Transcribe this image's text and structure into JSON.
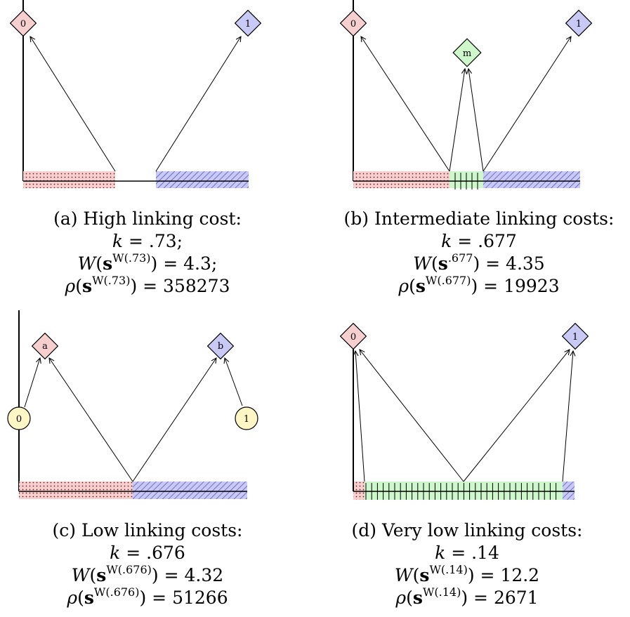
{
  "panels": [
    {
      "id": "a",
      "caption_title": "(a) High linking cost:",
      "k": ".73",
      "k_suffix": ";",
      "W_sup": "W(.73)",
      "W_val": "4.3",
      "W_suffix": ";",
      "rho_sup": "W(.73)",
      "rho_val": "358273",
      "nodes": [
        "0",
        "1"
      ],
      "segments": [
        "red-dotted",
        "gap",
        "blue-hatched"
      ]
    },
    {
      "id": "b",
      "caption_title": "(b) Intermediate linking costs:",
      "k": ".677",
      "k_suffix": "",
      "W_sup": ".677",
      "W_val": "4.35",
      "W_suffix": "",
      "rho_sup": "W(.677)",
      "rho_val": "19923",
      "nodes": [
        "0",
        "m",
        "1"
      ],
      "segments": [
        "red-dotted",
        "green-ticks",
        "blue-hatched"
      ]
    },
    {
      "id": "c",
      "caption_title": "(c) Low linking costs:",
      "k": ".676",
      "k_suffix": "",
      "W_sup": "W(.676)",
      "W_val": "4.32",
      "W_suffix": "",
      "rho_sup": "W(.676)",
      "rho_val": "51266",
      "nodes": [
        "a",
        "b",
        "0",
        "1"
      ],
      "segments": [
        "red-dotted",
        "blue-hatched"
      ]
    },
    {
      "id": "d",
      "caption_title": "(d) Very low linking costs:",
      "k": ".14",
      "k_suffix": "",
      "W_sup": "W(.14)",
      "W_val": "12.2",
      "W_suffix": "",
      "rho_sup": "W(.14)",
      "rho_val": "2671",
      "nodes": [
        "0",
        "1"
      ],
      "segments": [
        "red-dotted",
        "green-ticks",
        "blue-hatched"
      ]
    }
  ],
  "colors": {
    "red_fill": "#f8cfcf",
    "blue_fill": "#c9c9f5",
    "green_fill": "#cef8cc",
    "yellow_fill": "#fff6c6",
    "hatch_blue": "#5555cc",
    "dot_red": "#882222",
    "stroke": "#000000"
  }
}
